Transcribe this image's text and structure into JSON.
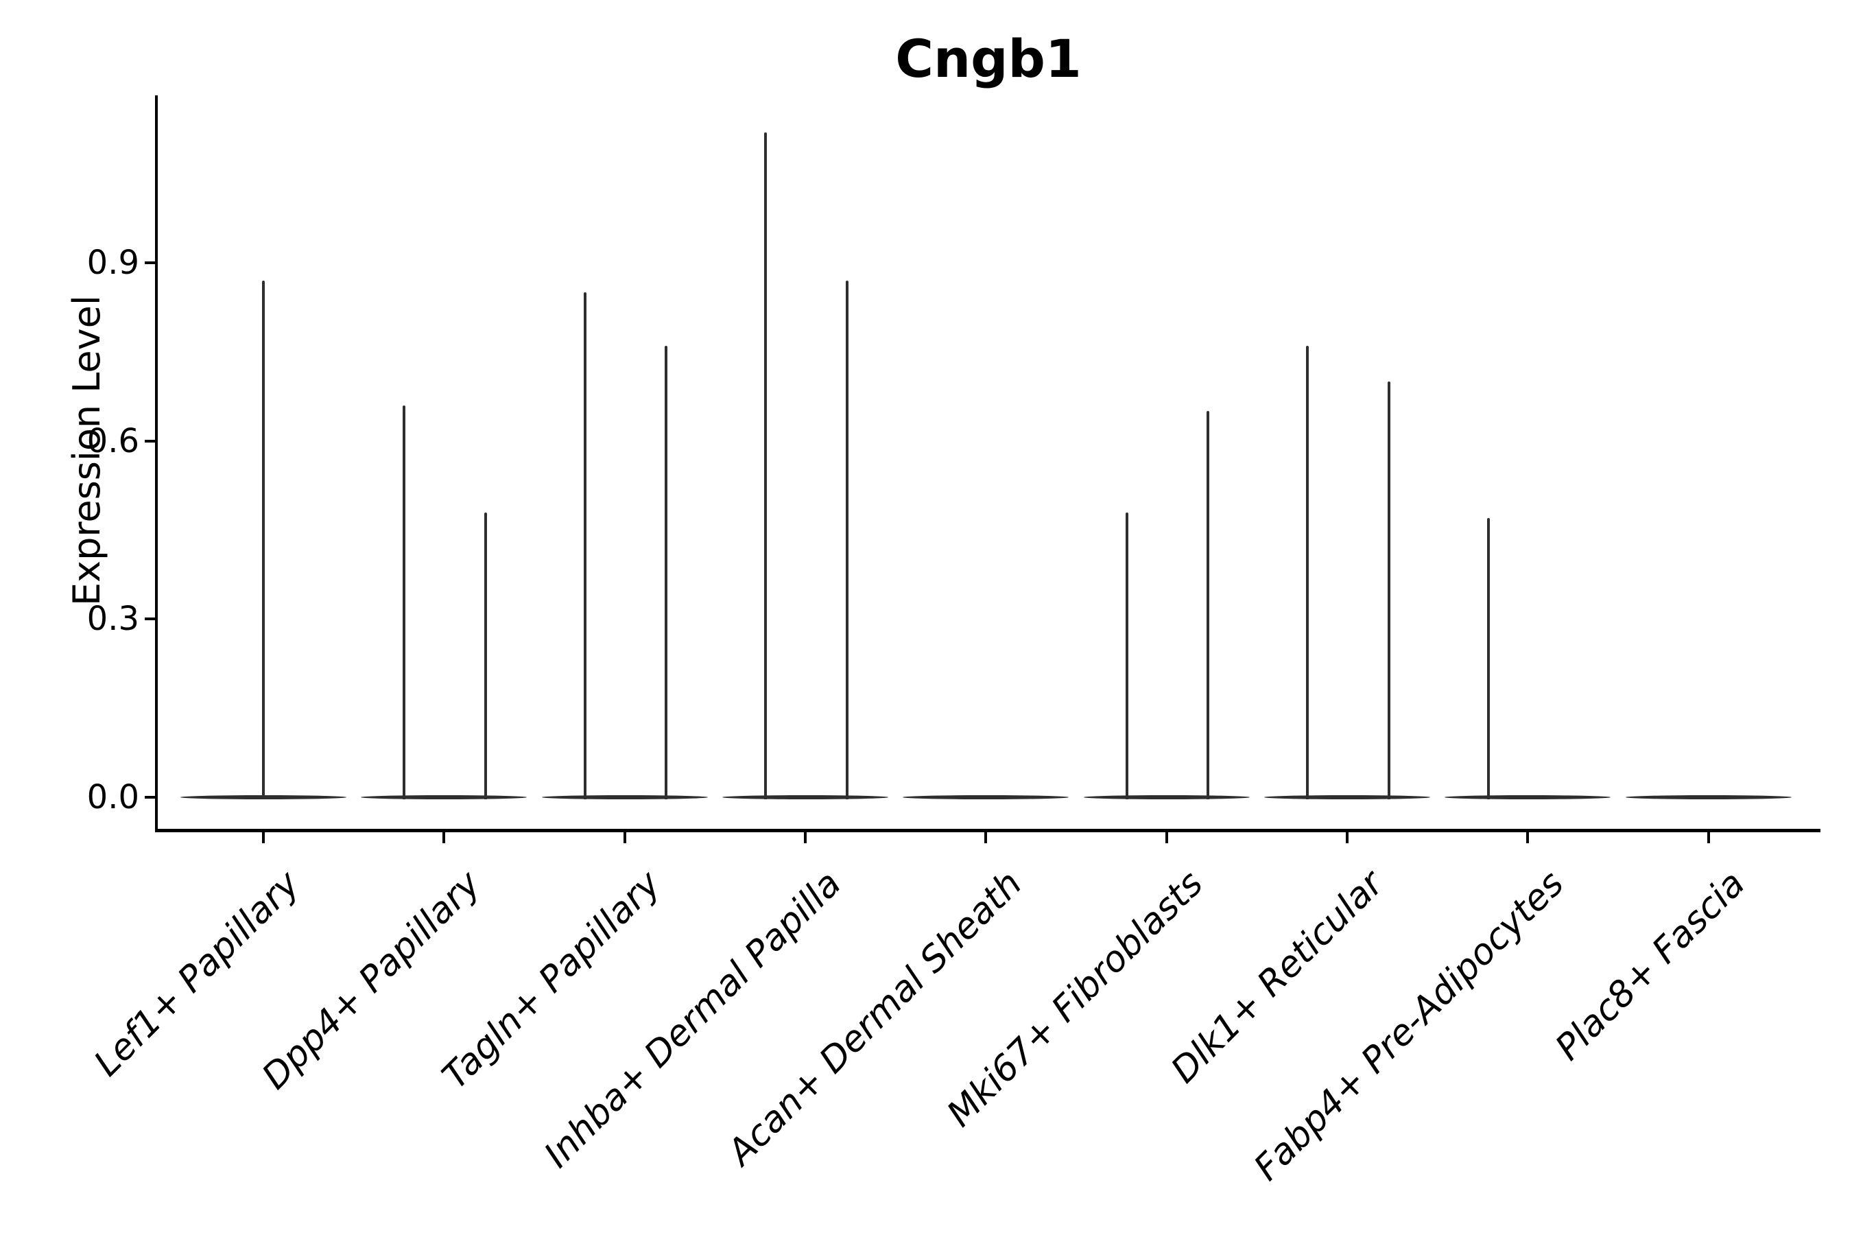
{
  "figure": {
    "title": "Cngb1",
    "ylabel": "Expression Level",
    "background_color": "#ffffff",
    "violin_color": "#2e2e2e",
    "axis_color": "#000000"
  },
  "chart_data": {
    "type": "violin",
    "title": "Cngb1",
    "xlabel": "",
    "ylabel": "Expression Level",
    "ylim": [
      -0.06,
      1.18
    ],
    "yticks": [
      "0.0",
      "0.3",
      "0.6",
      "0.9"
    ],
    "ytick_values": [
      0.0,
      0.3,
      0.6,
      0.9
    ],
    "grid": false,
    "legend_position": "none",
    "layout_hints": "open top/right spines; x tick labels italic, rotated 45deg, right-anchored; violins are flat density pancakes at 0 with thin vertical spikes of rare expressing cells",
    "categories": [
      "Lef1+ Papillary",
      "Dpp4+ Papillary",
      "Tagln+ Papillary",
      "Inhba+ Dermal Papilla",
      "Acan+ Dermal Sheath",
      "Mki67+ Fibroblasts",
      "Dlk1+ Reticular",
      "Fabp4+ Pre-Adipocytes",
      "Plac8+ Fascia"
    ],
    "violins": [
      {
        "category": "Lef1+ Papillary",
        "zero_peak": true,
        "body_rel_width": 0.92,
        "spikes": [
          {
            "rel_x": 0.0,
            "max_value": 0.87
          }
        ]
      },
      {
        "category": "Dpp4+ Papillary",
        "zero_peak": true,
        "body_rel_width": 0.92,
        "spikes": [
          {
            "rel_x": -0.22,
            "max_value": 0.66
          },
          {
            "rel_x": 0.23,
            "max_value": 0.48
          }
        ]
      },
      {
        "category": "Tagln+ Papillary",
        "zero_peak": true,
        "body_rel_width": 0.92,
        "spikes": [
          {
            "rel_x": -0.22,
            "max_value": 0.85
          },
          {
            "rel_x": 0.23,
            "max_value": 0.76
          }
        ]
      },
      {
        "category": "Inhba+ Dermal Papilla",
        "zero_peak": true,
        "body_rel_width": 0.92,
        "spikes": [
          {
            "rel_x": -0.22,
            "max_value": 1.12
          },
          {
            "rel_x": 0.23,
            "max_value": 0.87
          }
        ]
      },
      {
        "category": "Acan+ Dermal Sheath",
        "zero_peak": true,
        "body_rel_width": 0.92,
        "spikes": []
      },
      {
        "category": "Mki67+ Fibroblasts",
        "zero_peak": true,
        "body_rel_width": 0.92,
        "spikes": [
          {
            "rel_x": -0.22,
            "max_value": 0.48
          },
          {
            "rel_x": 0.23,
            "max_value": 0.65
          }
        ]
      },
      {
        "category": "Dlk1+ Reticular",
        "zero_peak": true,
        "body_rel_width": 0.92,
        "spikes": [
          {
            "rel_x": -0.22,
            "max_value": 0.76
          },
          {
            "rel_x": 0.23,
            "max_value": 0.7
          }
        ]
      },
      {
        "category": "Fabp4+ Pre-Adipocytes",
        "zero_peak": true,
        "body_rel_width": 0.92,
        "spikes": [
          {
            "rel_x": -0.22,
            "max_value": 0.47
          }
        ]
      },
      {
        "category": "Plac8+ Fascia",
        "zero_peak": true,
        "body_rel_width": 0.92,
        "spikes": []
      }
    ]
  }
}
